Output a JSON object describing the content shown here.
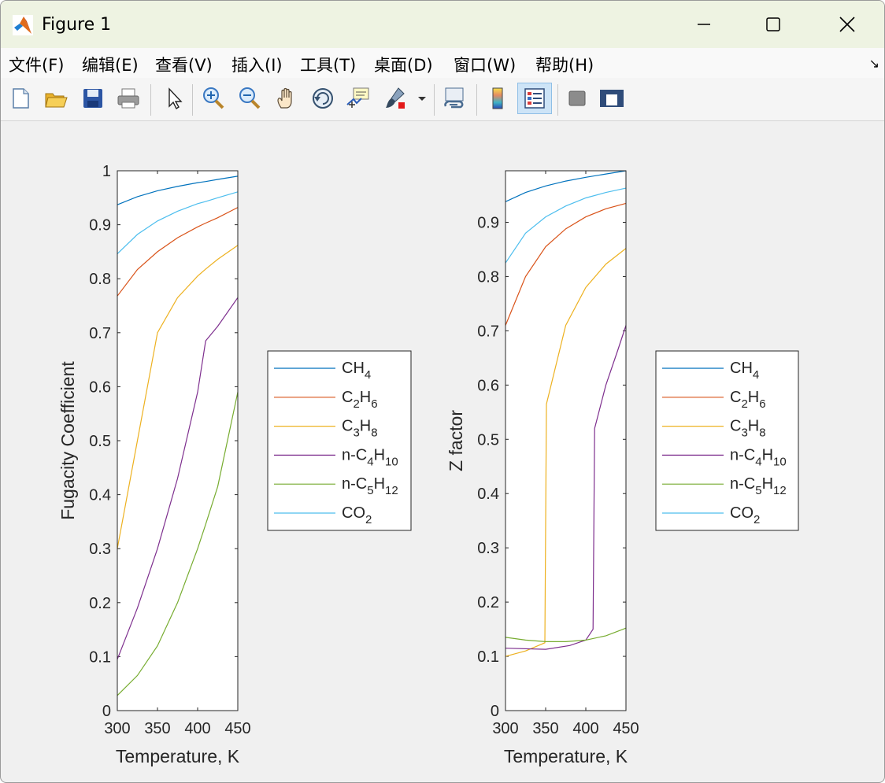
{
  "window": {
    "title": "Figure 1"
  },
  "menu": [
    {
      "label": "文件(F)",
      "name": "menu-file"
    },
    {
      "label": "编辑(E)",
      "name": "menu-edit"
    },
    {
      "label": "查看(V)",
      "name": "menu-view"
    },
    {
      "label": "插入(I)",
      "name": "menu-insert"
    },
    {
      "label": "工具(T)",
      "name": "menu-tools"
    },
    {
      "label": "桌面(D)",
      "name": "menu-desktop"
    },
    {
      "label": "窗口(W)",
      "name": "menu-window"
    },
    {
      "label": "帮助(H)",
      "name": "menu-help"
    }
  ],
  "toolbar_icons": [
    "new-figure-icon",
    "open-file-icon",
    "save-icon",
    "print-icon",
    "select-arrow-icon",
    "zoom-in-icon",
    "zoom-out-icon",
    "pan-hand-icon",
    "rotate-3d-icon",
    "data-cursor-icon",
    "brush-icon",
    "link-plot-icon",
    "colorbar-icon",
    "legend-icon",
    "hide-plot-tools-icon",
    "show-plot-tools-icon"
  ],
  "colors": {
    "CH4": "#0072BD",
    "C2H6": "#D95319",
    "C3H8": "#EDB120",
    "nC4H10": "#7E2F8E",
    "nC5H12": "#77AC30",
    "CO2": "#4DBEEE"
  },
  "chart_data": [
    {
      "type": "line",
      "ylabel": "Fugacity Coefficient",
      "xlabel": "Temperature, K",
      "xlim": [
        300,
        450
      ],
      "ylim": [
        0,
        1
      ],
      "xticks": [
        "300",
        "350",
        "400",
        "450"
      ],
      "yticks": [
        "0",
        "0.1",
        "0.2",
        "0.3",
        "0.4",
        "0.5",
        "0.6",
        "0.7",
        "0.8",
        "0.9",
        "1"
      ],
      "legend": "right-outside",
      "x": [
        300,
        325,
        350,
        375,
        400,
        410,
        425,
        450
      ],
      "series": [
        {
          "key": "CH4",
          "legend": [
            "CH",
            "4",
            ""
          ],
          "values": [
            0.937,
            0.952,
            0.963,
            0.971,
            0.978,
            0.98,
            0.984,
            0.99
          ]
        },
        {
          "key": "C2H6",
          "legend": [
            "C",
            "2",
            "H",
            "6"
          ],
          "values": [
            0.768,
            0.817,
            0.85,
            0.876,
            0.896,
            0.903,
            0.913,
            0.932
          ]
        },
        {
          "key": "C3H8",
          "legend": [
            "C",
            "3",
            "H",
            "8"
          ],
          "values": [
            0.3,
            0.5,
            0.7,
            0.765,
            0.805,
            0.818,
            0.836,
            0.862
          ]
        },
        {
          "key": "nC4H10",
          "legend": [
            "n-C",
            "4",
            "H",
            "10"
          ],
          "values": [
            0.095,
            0.19,
            0.3,
            0.43,
            0.59,
            0.685,
            0.712,
            0.765
          ]
        },
        {
          "key": "nC5H12",
          "legend": [
            "n-C",
            "5",
            "H",
            "12"
          ],
          "values": [
            0.028,
            0.065,
            0.12,
            0.2,
            0.3,
            0.345,
            0.415,
            0.59
          ]
        },
        {
          "key": "CO2",
          "legend": [
            "CO",
            "2",
            ""
          ],
          "values": [
            0.846,
            0.882,
            0.907,
            0.925,
            0.939,
            0.943,
            0.95,
            0.961
          ]
        }
      ]
    },
    {
      "type": "line",
      "ylabel": "Z factor",
      "xlabel": "Temperature, K",
      "xlim": [
        300,
        450
      ],
      "ylim": [
        0,
        0.995
      ],
      "xticks": [
        "300",
        "350",
        "400",
        "450"
      ],
      "yticks": [
        "0",
        "0.1",
        "0.2",
        "0.3",
        "0.4",
        "0.5",
        "0.6",
        "0.7",
        "0.8",
        "0.9"
      ],
      "legend": "right-outside",
      "series": [
        {
          "key": "CH4",
          "legend": [
            "CH",
            "4",
            ""
          ],
          "x": [
            300,
            325,
            350,
            375,
            400,
            425,
            450
          ],
          "values": [
            0.938,
            0.955,
            0.967,
            0.976,
            0.983,
            0.989,
            0.995
          ]
        },
        {
          "key": "C2H6",
          "legend": [
            "C",
            "2",
            "H",
            "6"
          ],
          "x": [
            300,
            325,
            350,
            375,
            400,
            425,
            450
          ],
          "values": [
            0.71,
            0.8,
            0.855,
            0.888,
            0.91,
            0.925,
            0.935
          ]
        },
        {
          "key": "C3H8",
          "legend": [
            "C",
            "3",
            "H",
            "8"
          ],
          "x": [
            300,
            325,
            349,
            351,
            375,
            400,
            425,
            450
          ],
          "values": [
            0.1,
            0.11,
            0.125,
            0.565,
            0.71,
            0.78,
            0.823,
            0.852
          ]
        },
        {
          "key": "nC4H10",
          "legend": [
            "n-C",
            "4",
            "H",
            "10"
          ],
          "x": [
            300,
            350,
            380,
            400,
            409,
            411,
            425,
            440,
            450
          ],
          "values": [
            0.115,
            0.113,
            0.12,
            0.13,
            0.15,
            0.52,
            0.6,
            0.665,
            0.71
          ]
        },
        {
          "key": "nC5H12",
          "legend": [
            "n-C",
            "5",
            "H",
            "12"
          ],
          "x": [
            300,
            325,
            350,
            375,
            400,
            425,
            450
          ],
          "values": [
            0.135,
            0.13,
            0.127,
            0.127,
            0.13,
            0.138,
            0.152
          ]
        },
        {
          "key": "CO2",
          "legend": [
            "CO",
            "2",
            ""
          ],
          "x": [
            300,
            325,
            350,
            375,
            400,
            425,
            450
          ],
          "values": [
            0.825,
            0.88,
            0.91,
            0.93,
            0.945,
            0.955,
            0.963
          ]
        }
      ]
    }
  ]
}
